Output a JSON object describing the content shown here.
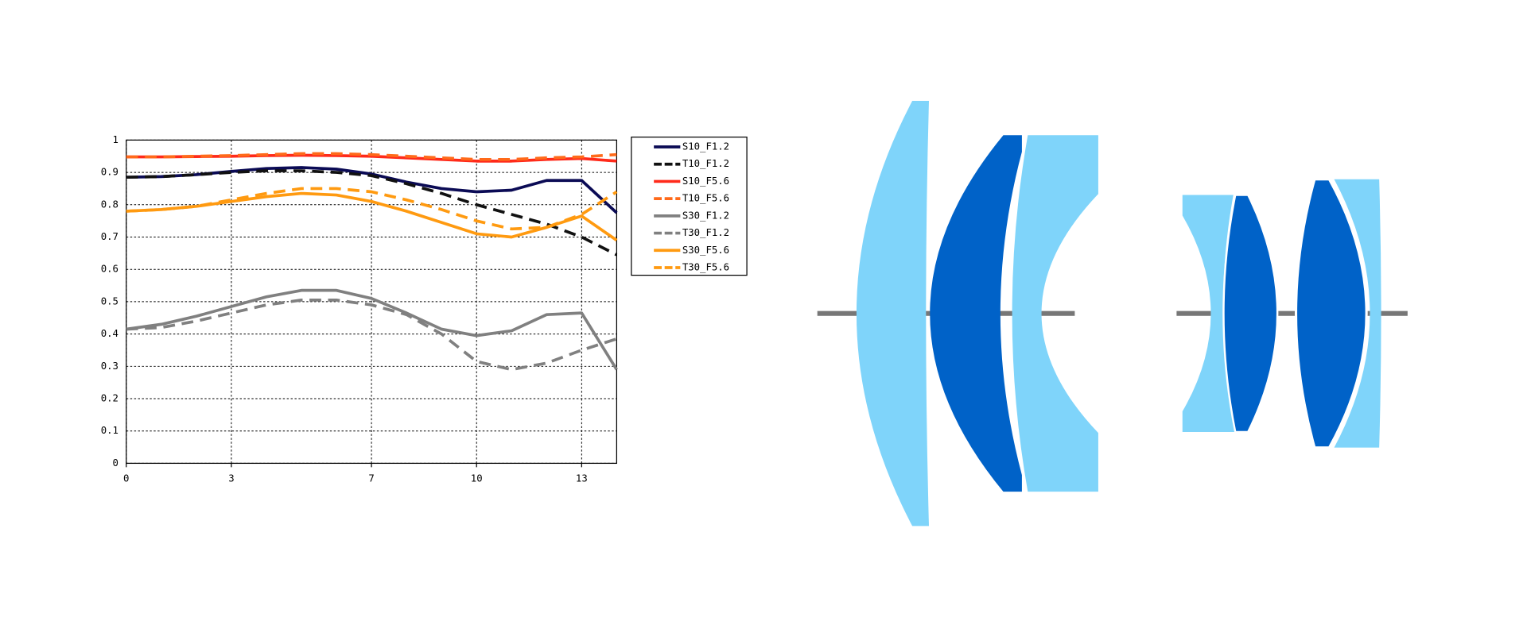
{
  "chart_data": {
    "type": "line",
    "x": [
      0,
      1,
      2,
      3,
      4,
      5,
      6,
      7,
      8,
      9,
      10,
      11,
      12,
      13,
      14
    ],
    "xlim": [
      0,
      14
    ],
    "xticks": [
      0,
      3,
      7,
      10,
      13
    ],
    "ylim": [
      0,
      1
    ],
    "yticks": [
      0,
      0.1,
      0.2,
      0.3,
      0.4,
      0.5,
      0.6,
      0.7,
      0.8,
      0.9,
      1
    ],
    "grid": true,
    "legend": "right",
    "series": [
      {
        "name": "S10_F1.2",
        "color": "#0b0b55",
        "dashed": false,
        "values": [
          0.885,
          0.887,
          0.893,
          0.903,
          0.912,
          0.915,
          0.91,
          0.895,
          0.87,
          0.85,
          0.84,
          0.845,
          0.875,
          0.875,
          0.775
        ]
      },
      {
        "name": "T10_F1.2",
        "color": "#111111",
        "dashed": true,
        "values": [
          0.885,
          0.887,
          0.893,
          0.9,
          0.905,
          0.905,
          0.9,
          0.89,
          0.865,
          0.835,
          0.8,
          0.77,
          0.74,
          0.7,
          0.645
        ]
      },
      {
        "name": "S10_F5.6",
        "color": "#ff2a1a",
        "dashed": false,
        "values": [
          0.948,
          0.948,
          0.949,
          0.95,
          0.952,
          0.953,
          0.952,
          0.95,
          0.945,
          0.94,
          0.935,
          0.935,
          0.94,
          0.943,
          0.935
        ]
      },
      {
        "name": "T10_F5.6",
        "color": "#ff6a1a",
        "dashed": true,
        "values": [
          0.948,
          0.948,
          0.95,
          0.952,
          0.955,
          0.958,
          0.958,
          0.955,
          0.95,
          0.945,
          0.94,
          0.94,
          0.945,
          0.948,
          0.955
        ]
      },
      {
        "name": "S30_F1.2",
        "color": "#808080",
        "dashed": false,
        "values": [
          0.415,
          0.43,
          0.455,
          0.485,
          0.515,
          0.535,
          0.535,
          0.51,
          0.465,
          0.415,
          0.395,
          0.41,
          0.46,
          0.465,
          0.29
        ]
      },
      {
        "name": "T30_F1.2",
        "color": "#808080",
        "dashed": true,
        "values": [
          0.415,
          0.42,
          0.44,
          0.465,
          0.49,
          0.505,
          0.505,
          0.49,
          0.46,
          0.4,
          0.315,
          0.29,
          0.31,
          0.35,
          0.385
        ]
      },
      {
        "name": "S30_F5.6",
        "color": "#ff9a10",
        "dashed": false,
        "values": [
          0.78,
          0.785,
          0.795,
          0.81,
          0.825,
          0.835,
          0.83,
          0.81,
          0.78,
          0.745,
          0.71,
          0.7,
          0.73,
          0.765,
          0.69
        ]
      },
      {
        "name": "T30_F5.6",
        "color": "#ff9a10",
        "dashed": true,
        "values": [
          0.78,
          0.785,
          0.795,
          0.815,
          0.835,
          0.85,
          0.85,
          0.84,
          0.815,
          0.785,
          0.75,
          0.725,
          0.73,
          0.77,
          0.84
        ]
      }
    ]
  }
}
